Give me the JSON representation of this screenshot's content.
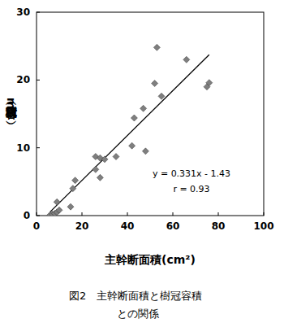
{
  "chart_data": {
    "type": "scatter",
    "title": [
      "図2　主幹断面積と樹冠容積",
      "との関係"
    ],
    "x_label": "主幹断面積(cm²)",
    "y_label": "樹冠容積（m³）",
    "series": [
      {
        "name": null,
        "color": "#7f7f7f",
        "marker": "diamond",
        "x": [
          6,
          7,
          8,
          9,
          9,
          10,
          15,
          16,
          17,
          26,
          26,
          28,
          28,
          30,
          35,
          42,
          43,
          47,
          48,
          52,
          53,
          55,
          66,
          75,
          76
        ],
        "values": [
          0.1,
          0.2,
          0.3,
          2.0,
          0.5,
          0.8,
          1.3,
          4.0,
          5.2,
          6.8,
          8.7,
          5.6,
          8.5,
          8.3,
          8.7,
          10.3,
          14.4,
          15.8,
          9.5,
          19.5,
          24.8,
          17.6,
          23.0,
          19.0,
          19.6
        ]
      }
    ],
    "trendline": {
      "slope": 0.331,
      "intercept": -1.43,
      "color": "#000000"
    },
    "annotations": [
      "y = 0.331x - 1.43",
      "r = 0.93"
    ],
    "xlim": [
      0,
      100
    ],
    "xticks": [
      0,
      20,
      40,
      60,
      80,
      100
    ],
    "ylim": [
      0,
      30
    ],
    "yticks": [
      0,
      10,
      20,
      30
    ],
    "grid": false
  }
}
